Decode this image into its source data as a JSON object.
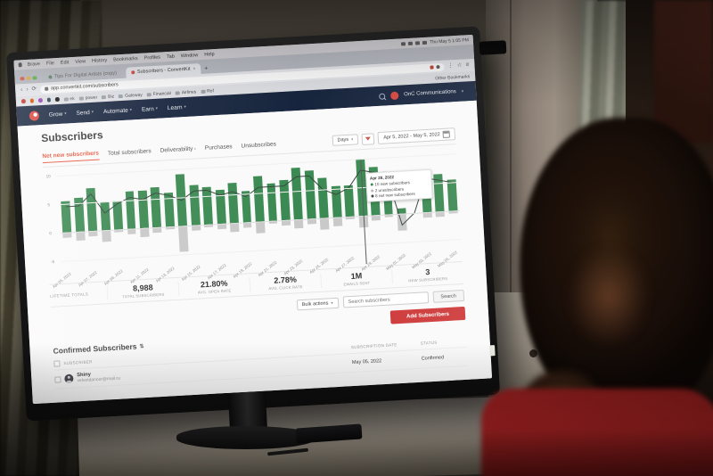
{
  "ui_colors": {
    "brand_red": "#d8453c",
    "accent": "#e4573d",
    "nav_bg": "#16243d",
    "bar_green": "#3c8a53",
    "bar_gray": "#c9c9c9",
    "net_line": "#39463d",
    "add_button": "#cf3d3d"
  },
  "menubar": {
    "items": [
      "Brave",
      "File",
      "Edit",
      "View",
      "History",
      "Bookmarks",
      "Profiles",
      "Tab",
      "Window",
      "Help"
    ],
    "clock": "Thu May 5 1:05 PM"
  },
  "browser": {
    "inactive_tab_label": "Tips For Digital Artists (copy)",
    "active_tab_label": "Subscribers - ConvertKit",
    "new_tab_button": "+",
    "url": "app.convertkit.com/subscribers",
    "bookmarks": [
      "ek",
      "power",
      "Biz",
      "Gateway",
      "Financial",
      "Airlines",
      "Ref"
    ],
    "other_bookmarks_label": "Other Bookmarks"
  },
  "app_nav": {
    "items": [
      "Grow",
      "Send",
      "Automate",
      "Earn",
      "Learn"
    ],
    "account_label": "OnC Communications"
  },
  "page": {
    "title": "Subscribers",
    "tabs": [
      {
        "label": "Net new subscribers",
        "active": true
      },
      {
        "label": "Total subscribers",
        "active": false
      },
      {
        "label": "Deliverability",
        "active": false,
        "caret": true
      },
      {
        "label": "Purchases",
        "active": false
      },
      {
        "label": "Unsubscribes",
        "active": false
      }
    ],
    "interval_label": "Days",
    "date_range": "Apr 5, 2022 - May 5, 2022"
  },
  "chart_data": {
    "type": "bar",
    "title": "Net new subscribers",
    "x": [
      "Apr 05, 2022",
      "Apr 06, 2022",
      "Apr 07, 2022",
      "Apr 08, 2022",
      "Apr 09, 2022",
      "Apr 10, 2022",
      "Apr 11, 2022",
      "Apr 12, 2022",
      "Apr 13, 2022",
      "Apr 14, 2022",
      "Apr 15, 2022",
      "Apr 16, 2022",
      "Apr 17, 2022",
      "Apr 18, 2022",
      "Apr 19, 2022",
      "Apr 20, 2022",
      "Apr 21, 2022",
      "Apr 22, 2022",
      "Apr 23, 2022",
      "Apr 24, 2022",
      "Apr 25, 2022",
      "Apr 26, 2022",
      "Apr 27, 2022",
      "Apr 28, 2022",
      "Apr 29, 2022",
      "Apr 30, 2022",
      "May 01, 2022",
      "May 02, 2022",
      "May 03, 2022",
      "May 04, 2022",
      "May 05, 2022"
    ],
    "series": [
      {
        "name": "New subscribers",
        "type": "bar",
        "color": "#3c8a53",
        "values": [
          5.5,
          6,
          7.5,
          5,
          5,
          6.5,
          6.5,
          7,
          6,
          9,
          7,
          6.5,
          6,
          7,
          5.5,
          8,
          6.5,
          7,
          9,
          8.5,
          7,
          5.5,
          5.5,
          10,
          8.5,
          7.5,
          1,
          0,
          7,
          6.5,
          5.5
        ]
      },
      {
        "name": "Unsubscribers",
        "type": "bar",
        "color": "#c9c9c9",
        "values": [
          -1,
          -1.5,
          -1,
          -2,
          -0.5,
          -1,
          -1.5,
          -1,
          -0.5,
          -4.5,
          -1,
          -0.5,
          -1,
          -1.5,
          -1,
          -2,
          -0.5,
          -1,
          -1.5,
          -1,
          -2,
          -1.5,
          -0.5,
          -2,
          -1,
          -0.5,
          -3,
          0,
          -1,
          -1,
          -0.5
        ]
      },
      {
        "name": "Net new subscribers",
        "type": "line",
        "color": "#39463d",
        "values": [
          4.5,
          4.5,
          6.5,
          3,
          4.5,
          5.5,
          5,
          6,
          5.5,
          4.5,
          6,
          6,
          5,
          5.5,
          4.5,
          6,
          6,
          6,
          7.5,
          7.5,
          5,
          4,
          5,
          8,
          7.5,
          7,
          -2,
          0,
          6,
          5.5,
          5
        ]
      }
    ],
    "ylim": [
      -5,
      10
    ],
    "yticks": [
      10,
      5,
      0,
      -5
    ],
    "tick_every": 2,
    "grid": true,
    "legend_position": "none",
    "tooltip": {
      "index": 23,
      "date": "Apr 28, 2022",
      "lines": [
        {
          "color": "#3c8a53",
          "text": "10 new subscribers"
        },
        {
          "color": "#b9b9b9",
          "text": "2 unsubscribers"
        },
        {
          "color": "#39463d",
          "text": "8 net new subscribers"
        }
      ]
    }
  },
  "lifetime": {
    "group_label": "LIFETIME TOTALS",
    "stats": [
      {
        "value": "8,988",
        "label": "TOTAL SUBSCRIBERS"
      },
      {
        "value": "21.80%",
        "label": "AVG. OPEN RATE"
      },
      {
        "value": "2.78%",
        "label": "AVG. CLICK RATE"
      },
      {
        "value": "1M",
        "label": "EMAILS SENT"
      },
      {
        "value": "3",
        "label": "NEW SUBSCRIBERS"
      }
    ]
  },
  "toolbar": {
    "bulk_actions_label": "Bulk actions",
    "search_placeholder": "Search subscribers",
    "search_button_label": "Search",
    "add_subscribers_label": "Add Subscribers"
  },
  "subscribers_table": {
    "title": "Confirmed Subscribers",
    "sort_icon": "⇅",
    "columns": [
      "SUBSCRIBER",
      "SUBSCRIPTION DATE",
      "STATUS"
    ],
    "rows": [
      {
        "name": "Shiny",
        "email": "velvetdancer@mail.ru",
        "subscription_date": "May 05, 2022",
        "status": "Confirmed"
      }
    ]
  }
}
